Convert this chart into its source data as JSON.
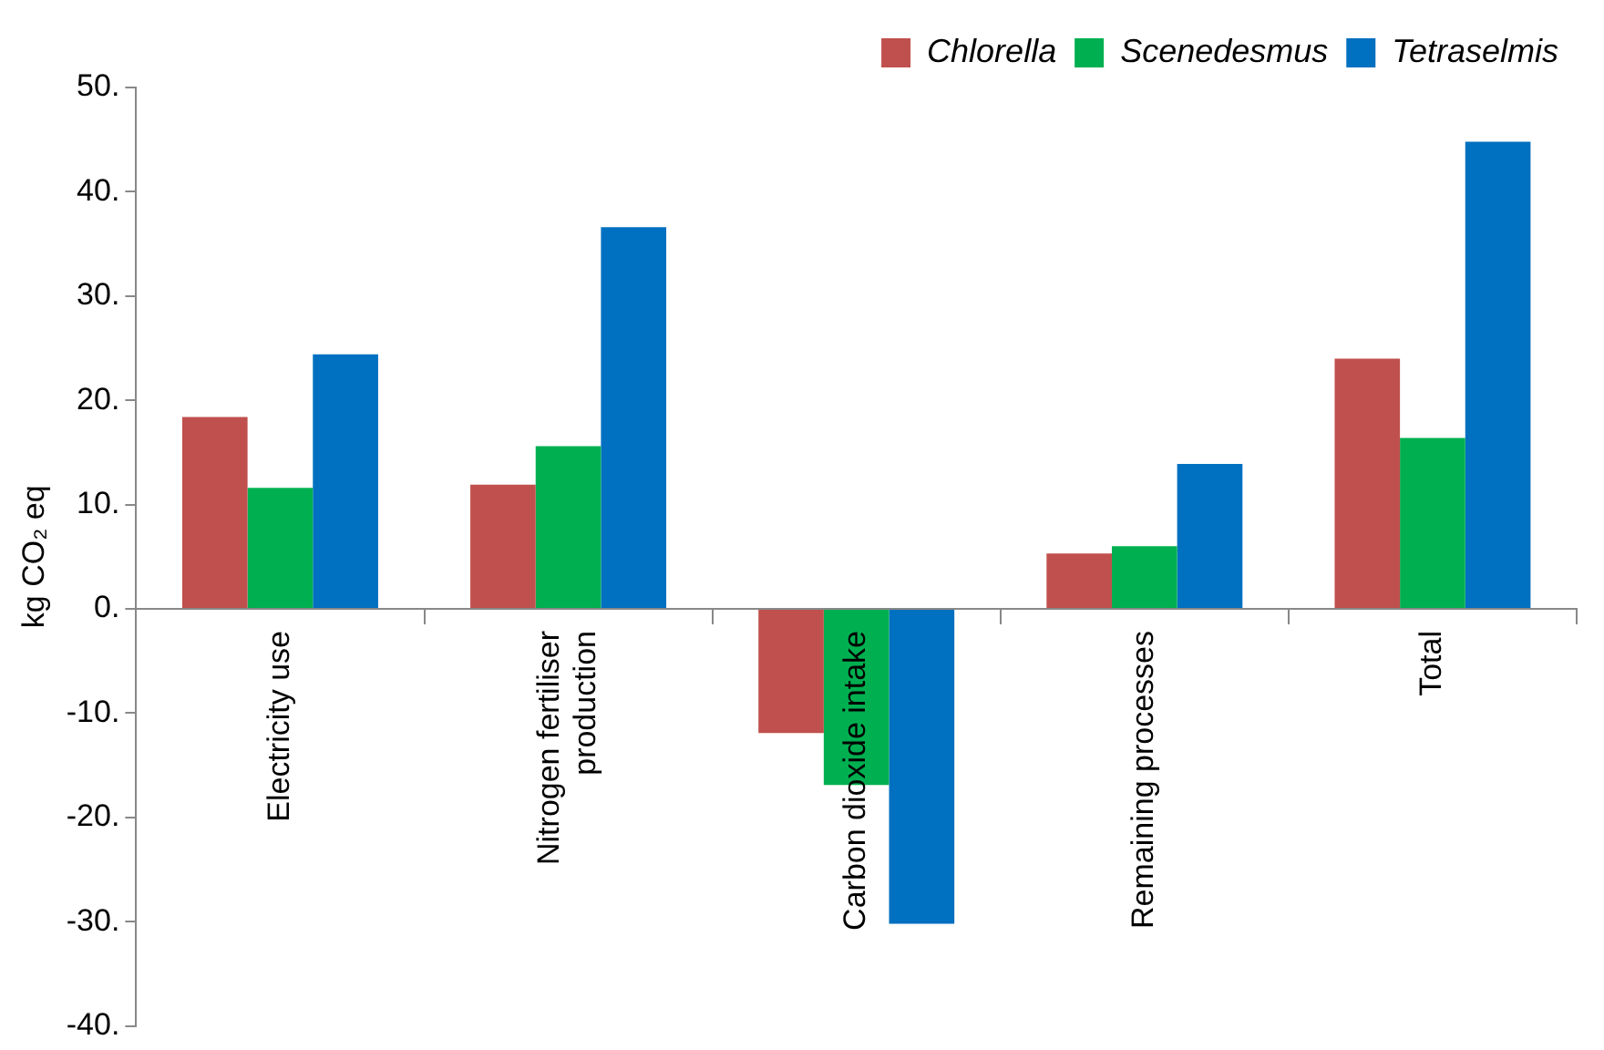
{
  "chart_data": {
    "type": "bar",
    "ylabel": "kg CO₂ eq",
    "categories": [
      "Electricity use",
      "Nitrogen fertiliser production",
      "Carbon dioxide intake",
      "Remaining processes",
      "Total"
    ],
    "series": [
      {
        "name": "Chlorella",
        "color": "#c0504d",
        "values": [
          18.4,
          11.9,
          -11.9,
          5.3,
          24.0
        ]
      },
      {
        "name": "Scenedesmus",
        "color": "#00b050",
        "values": [
          11.6,
          15.6,
          -16.9,
          6.0,
          16.4
        ]
      },
      {
        "name": "Tetraselmis",
        "color": "#0070c0",
        "values": [
          24.4,
          36.6,
          -30.2,
          13.9,
          44.8
        ]
      }
    ],
    "ylim": [
      -40,
      50
    ],
    "yticks": [
      {
        "value": -40,
        "label": "-40."
      },
      {
        "value": -30,
        "label": "-30."
      },
      {
        "value": -20,
        "label": "-20."
      },
      {
        "value": -10,
        "label": "-10."
      },
      {
        "value": 0,
        "label": "0."
      },
      {
        "value": 10,
        "label": "10."
      },
      {
        "value": 20,
        "label": "20."
      },
      {
        "value": 30,
        "label": "30."
      },
      {
        "value": 40,
        "label": "40."
      },
      {
        "value": 50,
        "label": "50."
      }
    ],
    "grid": false,
    "legend": "top right"
  }
}
